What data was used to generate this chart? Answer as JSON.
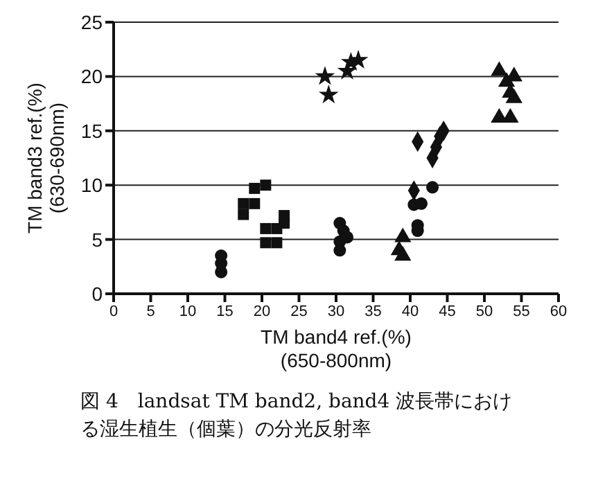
{
  "chart_data": {
    "type": "scatter",
    "xlabel": "TM band4 ref.(%)\n(650-800nm)",
    "ylabel": "TM band3 ref.(%)\n(630-690nm)",
    "annotations": [
      "図 4　landsat TM band2, band4 波長帯における湿生植生（個葉）の分光反射率"
    ],
    "xlim": [
      0,
      60
    ],
    "xticks": [
      0,
      5,
      10,
      15,
      20,
      25,
      30,
      35,
      40,
      45,
      50,
      55,
      60
    ],
    "ylim": [
      0,
      25
    ],
    "yticks": [
      0,
      5,
      10,
      15,
      20,
      25
    ],
    "grid": "y",
    "series": [
      {
        "color": "#111111",
        "marker": "circle",
        "x": [
          14.5,
          14.5,
          14.5
        ],
        "values": [
          2,
          2.8,
          3.5
        ]
      },
      {
        "color": "#111111",
        "marker": "square",
        "x": [
          19,
          20.5,
          17.5,
          17.5,
          19,
          20.5,
          22,
          23,
          23,
          20.5,
          22
        ],
        "values": [
          9.7,
          10,
          8.3,
          7.3,
          8.3,
          6,
          6,
          6.5,
          7.2,
          4.7,
          4.7
        ]
      },
      {
        "color": "#111111",
        "marker": "star",
        "x": [
          28.5,
          29,
          31.5,
          32,
          33
        ],
        "values": [
          20,
          18.3,
          20.5,
          21.3,
          21.5
        ]
      },
      {
        "color": "#111111",
        "marker": "circle",
        "x": [
          30.5,
          31,
          31.5,
          30.5,
          30.5
        ],
        "values": [
          6.5,
          5.8,
          5.2,
          4.8,
          4
        ]
      },
      {
        "color": "#111111",
        "marker": "diamond",
        "x": [
          41,
          43,
          43.5,
          44,
          44.5,
          40.5
        ],
        "values": [
          14,
          12.5,
          13.5,
          14.5,
          15,
          9.5
        ]
      },
      {
        "color": "#111111",
        "marker": "circle",
        "x": [
          43,
          40.5,
          41.5,
          41,
          41
        ],
        "values": [
          9.8,
          8.2,
          8.3,
          6.3,
          5.8
        ]
      },
      {
        "color": "#111111",
        "marker": "triangle",
        "x": [
          39,
          38.5,
          39
        ],
        "values": [
          5.2,
          4,
          3.5
        ]
      },
      {
        "color": "#111111",
        "marker": "triangle",
        "x": [
          52,
          53,
          53.5,
          54,
          52,
          53.5,
          54
        ],
        "values": [
          20.5,
          19.5,
          18.5,
          18,
          16.2,
          16.2,
          20
        ]
      }
    ]
  }
}
